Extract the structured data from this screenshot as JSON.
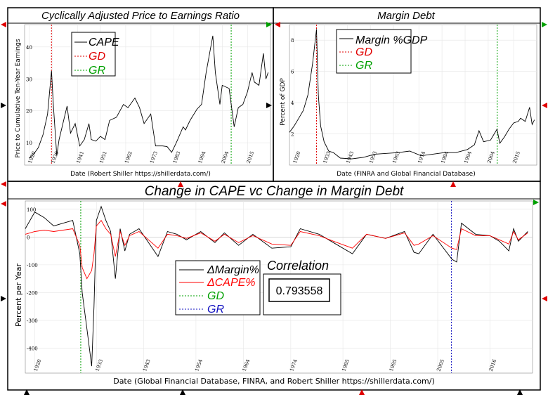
{
  "colors": {
    "cape": "#000000",
    "gd": "#e00000",
    "gr": "#00a000",
    "gr_blue": "#1010c0",
    "margin": "#000000",
    "dcape": "#ff0000"
  },
  "chart_data": [
    {
      "type": "line",
      "title": "Cyclically Adjusted Price to Earnings Ratio",
      "xlabel": "Date (Robert Shiller https://shillerdata.com/)",
      "ylabel": "Price to Cumulative Ten-Year Earnings",
      "x_ticks": [
        "1920",
        "1930",
        "1941",
        "1951",
        "1962",
        "1973",
        "1983",
        "1994",
        "2004",
        "2015"
      ],
      "y_ticks": [
        "10",
        "20",
        "30",
        "40"
      ],
      "xlim": [
        1918,
        2025
      ],
      "ylim": [
        3,
        47
      ],
      "legend": [
        "CAPE",
        "GD",
        "GR"
      ],
      "vlines": {
        "GD": 1929.7,
        "GR": 2007.9
      },
      "series": [
        {
          "name": "CAPE",
          "x": [
            1920,
            1922,
            1924,
            1926,
            1928,
            1929.7,
            1930.5,
            1932,
            1933,
            1935,
            1936.5,
            1938,
            1940,
            1942,
            1944,
            1946,
            1947,
            1949,
            1951,
            1953,
            1955,
            1958,
            1961,
            1963,
            1966,
            1968,
            1970,
            1972.9,
            1975,
            1978,
            1980,
            1982,
            1984,
            1987,
            1988,
            1990,
            1993,
            1995,
            1997,
            1999.9,
            2001,
            2003,
            2004,
            2007,
            2009.2,
            2011,
            2013,
            2015,
            2017,
            2018,
            2020,
            2021.9,
            2023,
            2024
          ],
          "values": [
            5.2,
            6.5,
            8.5,
            12.5,
            19,
            32.5,
            22,
            6,
            11,
            17,
            21.5,
            13,
            16,
            9,
            11,
            16,
            11,
            10.5,
            12,
            11,
            17,
            18,
            22,
            21,
            24,
            21,
            16,
            19,
            9,
            9,
            8.8,
            7,
            10,
            15,
            14,
            17,
            20.5,
            22,
            32,
            43.5,
            32,
            22,
            28,
            27,
            15,
            21,
            22,
            26,
            32,
            29,
            28,
            38,
            30,
            32
          ]
        }
      ]
    },
    {
      "type": "line",
      "title": "Margin Debt",
      "xlabel": "Date (FINRA and Global Financial Database)",
      "ylabel": "Percent of GDP",
      "x_ticks": [
        "1920",
        "1933",
        "1943",
        "1953",
        "1963",
        "1974",
        "1984",
        "1994",
        "2004",
        "2015"
      ],
      "y_ticks": [
        "2",
        "4",
        "6",
        "8"
      ],
      "xlim": [
        1918,
        2025
      ],
      "ylim": [
        0,
        9
      ],
      "legend": [
        "Margin %GDP",
        "GD",
        "GR"
      ],
      "vlines": {
        "GD": 1929.7,
        "GR": 2007.9
      },
      "series": [
        {
          "name": "Margin %GDP",
          "x": [
            1918,
            1920,
            1922,
            1924,
            1926,
            1928,
            1929.7,
            1930.5,
            1931.5,
            1933,
            1935,
            1937,
            1940,
            1945,
            1950,
            1955,
            1960,
            1965,
            1970,
            1975,
            1980,
            1985,
            1990,
            1995,
            1998,
            2000,
            2002,
            2005,
            2007.8,
            2009,
            2011,
            2013,
            2015,
            2017,
            2018,
            2020,
            2021.9,
            2023,
            2024
          ],
          "values": [
            2.1,
            2.5,
            3.0,
            3.5,
            4.5,
            6.5,
            8.7,
            4.5,
            2.5,
            1.5,
            0.9,
            0.8,
            0.45,
            0.4,
            0.5,
            0.7,
            0.75,
            0.8,
            0.9,
            0.6,
            0.7,
            0.8,
            0.8,
            1.0,
            1.3,
            2.2,
            1.5,
            1.6,
            2.3,
            1.4,
            1.8,
            2.3,
            2.7,
            2.8,
            3.0,
            2.8,
            3.7,
            2.6,
            2.9
          ]
        }
      ]
    },
    {
      "type": "line",
      "title": "Change in CAPE vc Change in Margin Debt",
      "xlabel": "Date (Global Financial Database, FINRA, and Robert Shiller https://shillerdata.com/)",
      "ylabel": "Percent per Year",
      "x_ticks": [
        "1920",
        "1933",
        "1943",
        "1954",
        "1964",
        "1974",
        "1985",
        "1995",
        "2005",
        "2016"
      ],
      "y_ticks": [
        "100",
        "0",
        "-100",
        "-200",
        "-300",
        "-400"
      ],
      "xlim": [
        1918,
        2025
      ],
      "ylim": [
        -490,
        130
      ],
      "legend": [
        "ΔMargin%",
        "ΔCAPE%",
        "GD",
        "GR"
      ],
      "vlines": {
        "GD": 1929.7,
        "GR": 2007.9
      },
      "correlation_label": "Correlation",
      "correlation_value": "0.793558",
      "series": [
        {
          "name": "ΔMargin%",
          "x": [
            1918,
            1920,
            1922,
            1924,
            1926,
            1928,
            1929.5,
            1930,
            1931,
            1932,
            1932.5,
            1933,
            1934,
            1935,
            1936,
            1937,
            1938,
            1939,
            1940,
            1942,
            1944,
            1946,
            1948,
            1950,
            1952,
            1955,
            1958,
            1960,
            1963,
            1966,
            1970,
            1974,
            1976,
            1980,
            1983,
            1987,
            1990,
            1994,
            1998,
            2000,
            2001,
            2004,
            2008,
            2009,
            2010,
            2013,
            2016,
            2018,
            2020,
            2021,
            2022,
            2024
          ],
          "values": [
            30,
            90,
            70,
            40,
            50,
            60,
            -60,
            -200,
            -330,
            -465,
            -250,
            60,
            110,
            60,
            20,
            -150,
            30,
            -50,
            10,
            30,
            -20,
            -70,
            20,
            10,
            -10,
            20,
            -20,
            15,
            -30,
            10,
            -40,
            -35,
            30,
            10,
            -20,
            -60,
            10,
            -5,
            20,
            -55,
            -60,
            10,
            -80,
            -90,
            50,
            10,
            5,
            -15,
            -50,
            30,
            -15,
            20
          ]
        },
        {
          "name": "ΔCAPE%",
          "x": [
            1918,
            1920,
            1922,
            1924,
            1926,
            1928,
            1929.5,
            1930,
            1931,
            1932,
            1932.5,
            1933,
            1934,
            1935,
            1936,
            1937,
            1938,
            1939,
            1940,
            1942,
            1944,
            1946,
            1948,
            1950,
            1952,
            1955,
            1958,
            1960,
            1963,
            1966,
            1970,
            1974,
            1976,
            1980,
            1983,
            1987,
            1990,
            1994,
            1998,
            2000,
            2001,
            2004,
            2008,
            2009,
            2010,
            2013,
            2016,
            2018,
            2020,
            2021,
            2022,
            2024
          ],
          "values": [
            10,
            20,
            25,
            20,
            25,
            30,
            -30,
            -110,
            -150,
            -120,
            -60,
            40,
            60,
            30,
            10,
            -70,
            20,
            -30,
            5,
            20,
            -10,
            -40,
            10,
            5,
            -5,
            15,
            -15,
            10,
            -20,
            5,
            -25,
            -30,
            20,
            5,
            -15,
            -40,
            10,
            -5,
            15,
            -30,
            -25,
            5,
            -40,
            -45,
            30,
            5,
            5,
            -10,
            -25,
            20,
            -10,
            15
          ]
        }
      ]
    }
  ]
}
